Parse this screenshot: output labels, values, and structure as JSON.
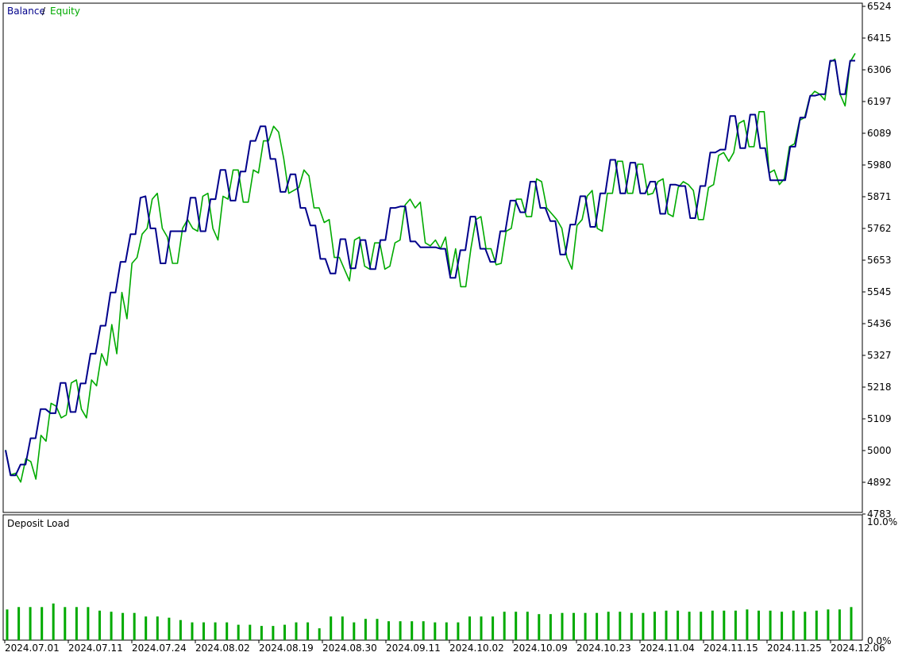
{
  "chart_data": [
    {
      "type": "line",
      "legend": {
        "items": [
          "Balance",
          "Equity"
        ],
        "separator": "/",
        "position": "top-left"
      },
      "series": [
        {
          "name": "Balance",
          "color": "#00008b",
          "values": [
            4999,
            4913,
            4913,
            4950,
            4950,
            5040,
            5040,
            5140,
            5140,
            5126,
            5126,
            5230,
            5230,
            5130,
            5130,
            5228,
            5228,
            5330,
            5330,
            5426,
            5426,
            5540,
            5540,
            5645,
            5645,
            5740,
            5740,
            5865,
            5870,
            5760,
            5760,
            5640,
            5640,
            5750,
            5750,
            5750,
            5750,
            5865,
            5865,
            5750,
            5750,
            5860,
            5860,
            5960,
            5960,
            5855,
            5855,
            5955,
            5955,
            6060,
            6060,
            6110,
            6110,
            5998,
            5998,
            5885,
            5885,
            5945,
            5945,
            5830,
            5830,
            5770,
            5770,
            5655,
            5655,
            5605,
            5605,
            5723,
            5723,
            5623,
            5623,
            5720,
            5720,
            5620,
            5620,
            5720,
            5720,
            5830,
            5830,
            5835,
            5835,
            5715,
            5715,
            5695,
            5695,
            5695,
            5695,
            5690,
            5690,
            5590,
            5590,
            5685,
            5685,
            5800,
            5800,
            5690,
            5690,
            5645,
            5645,
            5750,
            5750,
            5855,
            5855,
            5815,
            5815,
            5920,
            5920,
            5830,
            5830,
            5785,
            5785,
            5670,
            5670,
            5773,
            5773,
            5870,
            5870,
            5765,
            5765,
            5880,
            5880,
            5995,
            5995,
            5880,
            5880,
            5985,
            5985,
            5880,
            5880,
            5920,
            5920,
            5810,
            5810,
            5910,
            5910,
            5905,
            5905,
            5795,
            5795,
            5905,
            5905,
            6020,
            6020,
            6030,
            6030,
            6145,
            6145,
            6035,
            6035,
            6150,
            6150,
            6035,
            6035,
            5925,
            5925,
            5925,
            5925,
            6040,
            6040,
            6140,
            6140,
            6215,
            6215,
            6220,
            6220,
            6335,
            6335,
            6220,
            6220,
            6335,
            6335
          ]
        },
        {
          "name": "Equity",
          "color": "#00aa00",
          "values": [
            5000,
            4915,
            4920,
            4890,
            4970,
            4960,
            4900,
            5050,
            5030,
            5160,
            5150,
            5110,
            5120,
            5230,
            5240,
            5140,
            5110,
            5240,
            5220,
            5330,
            5290,
            5430,
            5330,
            5540,
            5450,
            5640,
            5660,
            5740,
            5760,
            5860,
            5880,
            5760,
            5730,
            5640,
            5640,
            5760,
            5790,
            5760,
            5750,
            5870,
            5880,
            5760,
            5720,
            5870,
            5860,
            5960,
            5960,
            5850,
            5850,
            5960,
            5950,
            6060,
            6060,
            6110,
            6090,
            6000,
            5880,
            5890,
            5900,
            5960,
            5940,
            5830,
            5830,
            5780,
            5790,
            5660,
            5660,
            5620,
            5580,
            5720,
            5730,
            5630,
            5620,
            5710,
            5710,
            5620,
            5630,
            5710,
            5720,
            5840,
            5860,
            5830,
            5850,
            5710,
            5700,
            5720,
            5690,
            5730,
            5600,
            5690,
            5560,
            5560,
            5690,
            5790,
            5800,
            5690,
            5690,
            5635,
            5640,
            5750,
            5760,
            5860,
            5860,
            5800,
            5800,
            5930,
            5920,
            5830,
            5810,
            5790,
            5760,
            5660,
            5620,
            5770,
            5790,
            5870,
            5890,
            5760,
            5750,
            5880,
            5880,
            5990,
            5990,
            5880,
            5880,
            5980,
            5980,
            5875,
            5880,
            5920,
            5930,
            5810,
            5800,
            5900,
            5920,
            5910,
            5890,
            5790,
            5790,
            5900,
            5910,
            6010,
            6020,
            5990,
            6020,
            6120,
            6130,
            6040,
            6040,
            6160,
            6160,
            5950,
            5960,
            5910,
            5930,
            6040,
            6050,
            6130,
            6140,
            6210,
            6230,
            6220,
            6200,
            6330,
            6340,
            6220,
            6180,
            6330,
            6360
          ]
        }
      ],
      "x_tick_labels": [
        "2024.07.01",
        "2024.07.11",
        "2024.07.24",
        "2024.08.02",
        "2024.08.19",
        "2024.08.30",
        "2024.09.11",
        "2024.10.02",
        "2024.10.09",
        "2024.10.23",
        "2024.11.04",
        "2024.11.15",
        "2024.11.25",
        "2024.12.06"
      ],
      "y_tick_labels": [
        "6524",
        "6415",
        "6306",
        "6197",
        "6089",
        "5980",
        "5871",
        "5762",
        "5653",
        "5545",
        "5436",
        "5327",
        "5218",
        "5109",
        "5000",
        "4892",
        "4783"
      ],
      "ylim": [
        4783,
        6524
      ],
      "grid": false
    },
    {
      "type": "bar",
      "title": "Deposit Load",
      "series": [
        {
          "name": "Deposit Load",
          "color": "#00aa00",
          "values": [
            2.6,
            2.8,
            2.8,
            2.8,
            3.1,
            2.8,
            2.8,
            2.8,
            2.5,
            2.4,
            2.3,
            2.3,
            2.0,
            2.0,
            1.9,
            1.7,
            1.5,
            1.5,
            1.5,
            1.5,
            1.3,
            1.3,
            1.2,
            1.2,
            1.3,
            1.5,
            1.5,
            1.0,
            2.0,
            2.0,
            1.5,
            1.8,
            1.8,
            1.6,
            1.6,
            1.6,
            1.6,
            1.5,
            1.5,
            1.5,
            2.0,
            2.0,
            2.0,
            2.4,
            2.4,
            2.4,
            2.2,
            2.2,
            2.3,
            2.3,
            2.3,
            2.3,
            2.4,
            2.4,
            2.3,
            2.3,
            2.4,
            2.5,
            2.5,
            2.4,
            2.4,
            2.5,
            2.5,
            2.5,
            2.6,
            2.5,
            2.5,
            2.4,
            2.5,
            2.4,
            2.5,
            2.6,
            2.6,
            2.8
          ]
        }
      ],
      "y_tick_labels": [
        "10.0%",
        "0.0%"
      ],
      "ylim": [
        0,
        10
      ]
    }
  ]
}
